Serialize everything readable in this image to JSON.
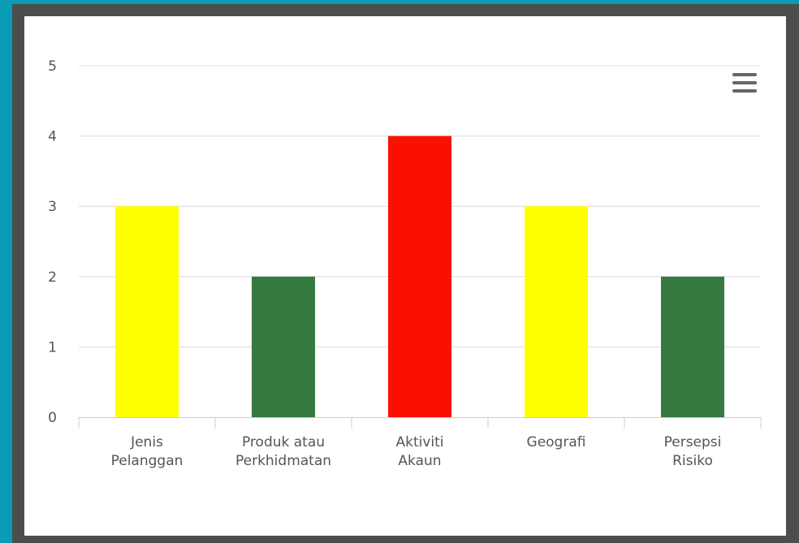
{
  "chart_data": {
    "type": "bar",
    "categories": [
      [
        "Jenis",
        "Pelanggan"
      ],
      [
        "Produk atau",
        "Perkhidmatan"
      ],
      [
        "Aktiviti",
        "Akaun"
      ],
      [
        "Geografi"
      ],
      [
        "Persepsi",
        "Risiko"
      ]
    ],
    "values": [
      3,
      2,
      4,
      3,
      2
    ],
    "colors": [
      "#ffff00",
      "#367a42",
      "#f91000",
      "#ffff00",
      "#367a42"
    ],
    "ylim": [
      0,
      5
    ],
    "yticks": [
      0,
      1,
      2,
      3,
      4,
      5
    ],
    "grid": true
  }
}
